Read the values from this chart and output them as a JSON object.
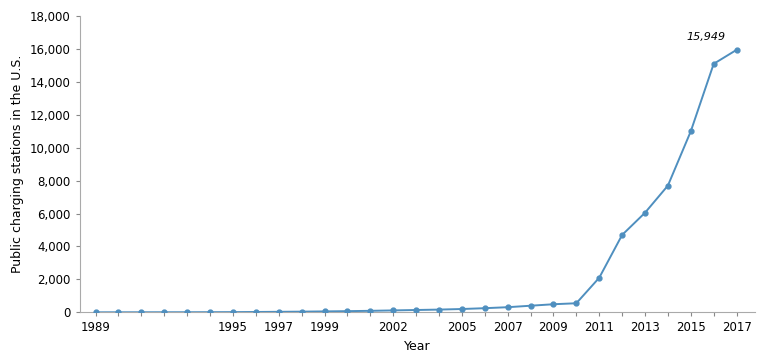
{
  "years": [
    1989,
    1990,
    1991,
    1992,
    1993,
    1994,
    1995,
    1996,
    1997,
    1998,
    1999,
    2000,
    2001,
    2002,
    2003,
    2004,
    2005,
    2006,
    2007,
    2008,
    2009,
    2010,
    2011,
    2012,
    2013,
    2014,
    2015,
    2016,
    2017
  ],
  "values": [
    0,
    2,
    3,
    4,
    5,
    8,
    12,
    20,
    30,
    40,
    55,
    70,
    90,
    115,
    140,
    165,
    200,
    250,
    310,
    400,
    490,
    550,
    2100,
    4700,
    6050,
    7700,
    11000,
    15100,
    15949
  ],
  "line_color": "#4f8fbf",
  "ylabel": "Public charging stations in the U.S.",
  "xlabel": "Year",
  "ylim": [
    0,
    18000
  ],
  "yticks": [
    0,
    2000,
    4000,
    6000,
    8000,
    10000,
    12000,
    14000,
    16000,
    18000
  ],
  "annotation_text": "15,949",
  "annotation_year": 2017,
  "annotation_value": 15949,
  "background_color": "#ffffff",
  "labeled_xticks": [
    1989,
    1995,
    1997,
    1999,
    2002,
    2005,
    2007,
    2009,
    2011,
    2013,
    2015,
    2017
  ],
  "all_xticks": [
    1989,
    1990,
    1991,
    1992,
    1993,
    1994,
    1995,
    1996,
    1997,
    1998,
    1999,
    2000,
    2001,
    2002,
    2003,
    2004,
    2005,
    2006,
    2007,
    2008,
    2009,
    2010,
    2011,
    2012,
    2013,
    2014,
    2015,
    2016,
    2017
  ],
  "xlim_left": 1988.3,
  "xlim_right": 2017.8
}
